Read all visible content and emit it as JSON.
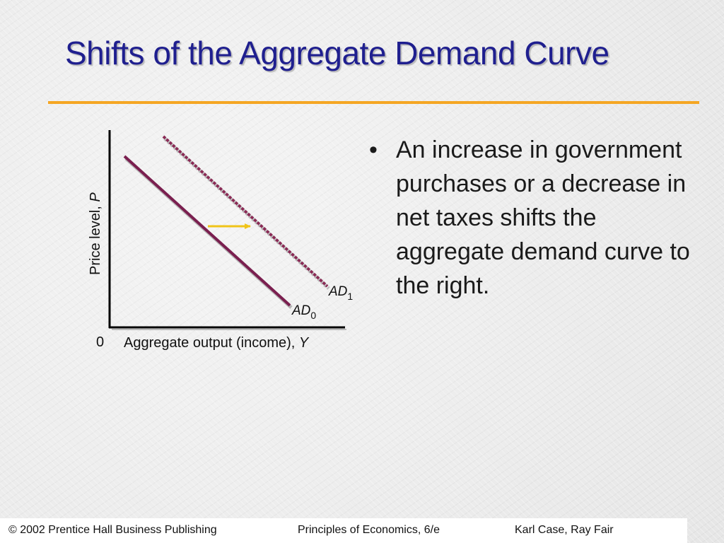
{
  "slide": {
    "title": "Shifts of the Aggregate Demand Curve",
    "bullet": "•",
    "bullet_text": "An increase in government purchases or a decrease in net taxes shifts the aggregate demand curve to the right."
  },
  "diagram": {
    "y_axis_label": "Price level, ",
    "y_axis_var": "P",
    "x_axis_label": "Aggregate output (income), ",
    "x_axis_var": "Y",
    "origin_label": "0",
    "curve_ad0": {
      "base": "AD",
      "sub": "0"
    },
    "curve_ad1": {
      "base": "AD",
      "sub": "1"
    },
    "shift_arrow_direction": "right",
    "colors": {
      "ad0": "#7a1f4f",
      "ad1": "#8a2a55",
      "arrow": "#f0c419",
      "axes": "#000000",
      "title": "#1f1f8f",
      "rule": "#f5a623"
    }
  },
  "footer": {
    "copyright": "© 2002 Prentice Hall Business Publishing",
    "book": "Principles of Economics, 6/e",
    "authors": "Karl Case, Ray Fair"
  }
}
